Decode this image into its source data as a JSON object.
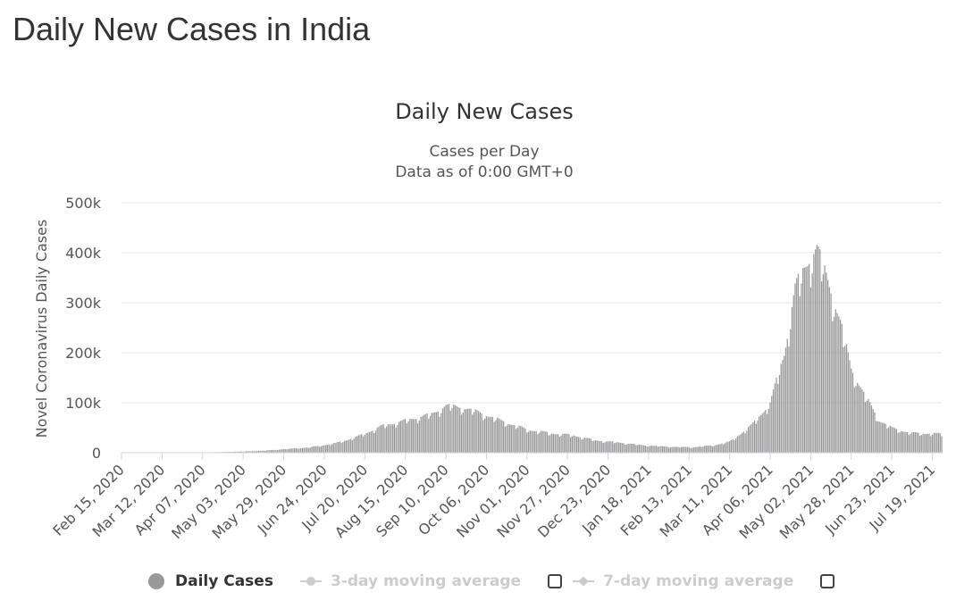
{
  "page": {
    "title": "Daily New Cases in India"
  },
  "chart_data": {
    "type": "bar",
    "title": "Daily New Cases",
    "subtitle_lines": [
      "Cases per Day",
      "Data as of 0:00 GMT+0"
    ],
    "ylabel": "Novel Coronavirus Daily Cases",
    "xlabel": "",
    "ylim": [
      0,
      500000
    ],
    "yticks": [
      0,
      100000,
      200000,
      300000,
      400000,
      500000
    ],
    "ytick_labels": [
      "0",
      "100k",
      "200k",
      "300k",
      "400k",
      "500k"
    ],
    "x_start": "2020-02-15",
    "x_end": "2021-07-25",
    "xtick_labels": [
      "Feb 15, 2020",
      "Mar 12, 2020",
      "Apr 07, 2020",
      "May 03, 2020",
      "May 29, 2020",
      "Jun 24, 2020",
      "Jul 20, 2020",
      "Aug 15, 2020",
      "Sep 10, 2020",
      "Oct 06, 2020",
      "Nov 01, 2020",
      "Nov 27, 2020",
      "Dec 23, 2020",
      "Jan 18, 2021",
      "Feb 13, 2021",
      "Mar 11, 2021",
      "Apr 06, 2021",
      "May 02, 2021",
      "May 28, 2021",
      "Jun 23, 2021",
      "Jul 19, 2021"
    ],
    "grid": true,
    "bar_color": "#999999",
    "series": [
      {
        "name": "Daily Cases",
        "color": "#999999",
        "key_points": [
          [
            "2020-02-15",
            0
          ],
          [
            "2020-03-15",
            100
          ],
          [
            "2020-04-01",
            500
          ],
          [
            "2020-04-15",
            1000
          ],
          [
            "2020-05-01",
            2300
          ],
          [
            "2020-05-15",
            3900
          ],
          [
            "2020-06-01",
            7800
          ],
          [
            "2020-06-15",
            11000
          ],
          [
            "2020-07-01",
            19000
          ],
          [
            "2020-07-15",
            32000
          ],
          [
            "2020-08-01",
            55000
          ],
          [
            "2020-08-15",
            65000
          ],
          [
            "2020-09-01",
            78000
          ],
          [
            "2020-09-10",
            95000
          ],
          [
            "2020-09-20",
            92000
          ],
          [
            "2020-10-01",
            82000
          ],
          [
            "2020-10-15",
            65000
          ],
          [
            "2020-11-01",
            47000
          ],
          [
            "2020-11-15",
            40000
          ],
          [
            "2020-12-01",
            35000
          ],
          [
            "2020-12-15",
            25000
          ],
          [
            "2021-01-01",
            20000
          ],
          [
            "2021-01-15",
            15000
          ],
          [
            "2021-02-01",
            12000
          ],
          [
            "2021-02-15",
            11000
          ],
          [
            "2021-03-01",
            15000
          ],
          [
            "2021-03-11",
            22000
          ],
          [
            "2021-03-25",
            55000
          ],
          [
            "2021-04-06",
            100000
          ],
          [
            "2021-04-15",
            200000
          ],
          [
            "2021-04-22",
            330000
          ],
          [
            "2021-05-02",
            400000
          ],
          [
            "2021-05-06",
            410000
          ],
          [
            "2021-05-15",
            330000
          ],
          [
            "2021-05-22",
            250000
          ],
          [
            "2021-05-28",
            170000
          ],
          [
            "2021-06-05",
            120000
          ],
          [
            "2021-06-15",
            65000
          ],
          [
            "2021-06-23",
            50000
          ],
          [
            "2021-07-05",
            40000
          ],
          [
            "2021-07-25",
            38000
          ]
        ]
      }
    ],
    "legend": [
      {
        "label": "Daily Cases",
        "state": "active"
      },
      {
        "label": "3-day moving average",
        "state": "hidden"
      },
      {
        "label": "7-day moving average",
        "state": "hidden"
      }
    ],
    "legend_position": "bottom"
  },
  "colors": {
    "bars": "#999999",
    "grid": "#e6e6e6",
    "hidden_legend": "#cccccc",
    "axis": "#ccd6eb"
  }
}
